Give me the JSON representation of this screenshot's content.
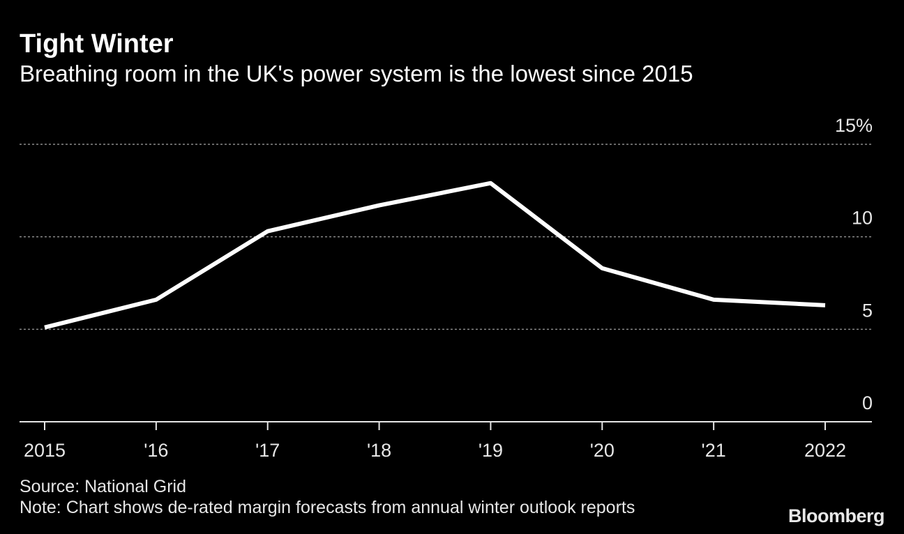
{
  "header": {
    "title": "Tight Winter",
    "subtitle": "Breathing room in the UK's power system is the lowest since 2015"
  },
  "footer": {
    "source": "Source: National Grid",
    "note": "Note: Chart shows de-rated margin forecasts from annual winter outlook reports",
    "logo": "Bloomberg"
  },
  "colors": {
    "background": "#000000",
    "line": "#ffffff",
    "grid": "#8a8a8a",
    "text": "#ffffff"
  },
  "chart_data": {
    "type": "line",
    "title": "Tight Winter",
    "subtitle": "Breathing room in the UK's power system is the lowest since 2015",
    "xlabel": "",
    "ylabel": "",
    "categories": [
      "2015",
      "'16",
      "'17",
      "'18",
      "'19",
      "'20",
      "'21",
      "2022"
    ],
    "series": [
      {
        "name": "De-rated margin forecast",
        "values": [
          5.1,
          6.6,
          10.3,
          11.7,
          12.9,
          8.3,
          6.6,
          6.3
        ]
      }
    ],
    "ylim": [
      0,
      15
    ],
    "yticks": [
      0,
      5,
      10,
      15
    ],
    "ytick_labels": [
      "0",
      "5",
      "10",
      "15%"
    ],
    "grid": true,
    "legend": "none"
  }
}
